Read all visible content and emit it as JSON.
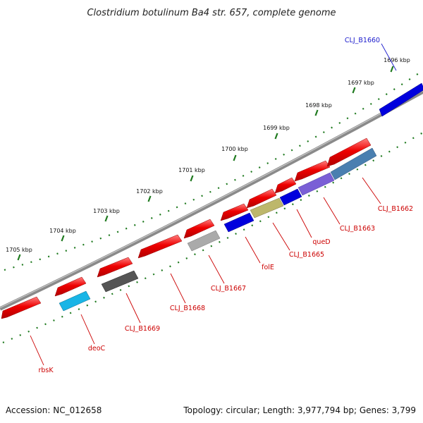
{
  "title": "Clostridium botulinum Ba4 str. 657, complete genome",
  "footer": {
    "accession": "Accession: NC_012658",
    "summary": "Topology: circular; Length: 3,977,794 bp; Genes: 3,799"
  },
  "colors": {
    "backbone": "#7a7a7a",
    "ticks": "#1f7a1f",
    "forward_label": "#1a1acc",
    "reverse_label": "#cc0000"
  },
  "scale_ticks": [
    "1696 kbp",
    "1697 kbp",
    "1698 kbp",
    "1699 kbp",
    "1700 kbp",
    "1701 kbp",
    "1702 kbp",
    "1703 kbp",
    "1704 kbp",
    "1705 kbp"
  ],
  "genes": [
    {
      "label": "CLJ_B1660",
      "color": "#0000dd",
      "strand": "forward"
    },
    {
      "label": "CLJ_B1662",
      "color": "#ee0000",
      "strand": "reverse"
    },
    {
      "label": "CLJ_B1663",
      "color": "#4a7fb0",
      "strand": "reverse"
    },
    {
      "label": "queD",
      "color": "#7a5fd6",
      "strand": "reverse"
    },
    {
      "label": "CLJ_B1665",
      "color": "#0000dd",
      "strand": "reverse"
    },
    {
      "label": "folE",
      "color": "#bdb76b",
      "strand": "reverse"
    },
    {
      "label": "CLJ_B1667",
      "color": "#0000dd",
      "strand": "reverse"
    },
    {
      "label": "CLJ_B1668",
      "color": "#aaaaaa",
      "strand": "reverse"
    },
    {
      "label": "CLJ_B1669",
      "color": "#555555",
      "strand": "reverse"
    },
    {
      "label": "deoC",
      "color": "#19b5e6",
      "strand": "reverse"
    },
    {
      "label": "rbsK",
      "color": "#ee0000",
      "strand": "reverse"
    }
  ]
}
